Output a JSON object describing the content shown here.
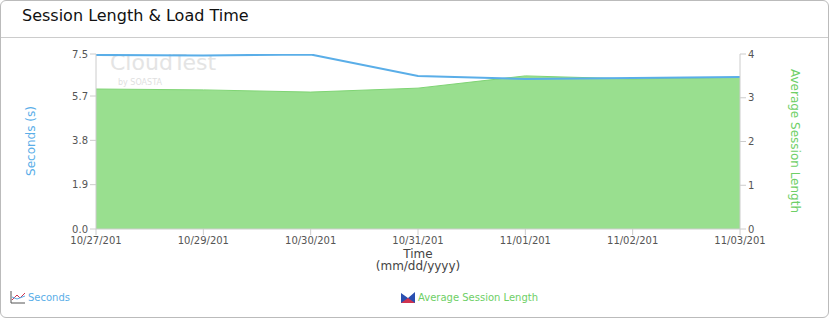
{
  "chart_data": {
    "type": "line",
    "title": "Session Length & Load Time",
    "x_label": "Time (mm/dd/yyyy)",
    "y_label": "Seconds (s)",
    "y2_label": "Average Session Length",
    "annotations": [
      "CloudTest",
      "by SOASTA"
    ],
    "x": [
      "10/27/201",
      "10/29/201",
      "10/30/201",
      "10/31/201",
      "11/01/201",
      "11/02/201",
      "11/03/201"
    ],
    "series": [
      {
        "name": "Average Session Length",
        "type": "area",
        "axis": "y2",
        "color": "#99df8f",
        "values": [
          3.2,
          3.18,
          3.13,
          3.22,
          3.5,
          3.43,
          3.47
        ]
      },
      {
        "name": "Seconds",
        "type": "line",
        "color": "#5aaee8",
        "values": [
          7.46,
          7.44,
          7.48,
          6.56,
          6.43,
          6.47,
          6.51
        ]
      }
    ],
    "ylim": [
      0,
      7.5
    ],
    "yticks": [
      {
        "value": 0,
        "label": "0.0"
      },
      1.9,
      3.8,
      5.7,
      7.5
    ],
    "y2lim": [
      0,
      4
    ],
    "y2ticks": [
      0,
      1,
      2,
      3,
      4
    ],
    "grid": false,
    "legend": "bottom"
  }
}
